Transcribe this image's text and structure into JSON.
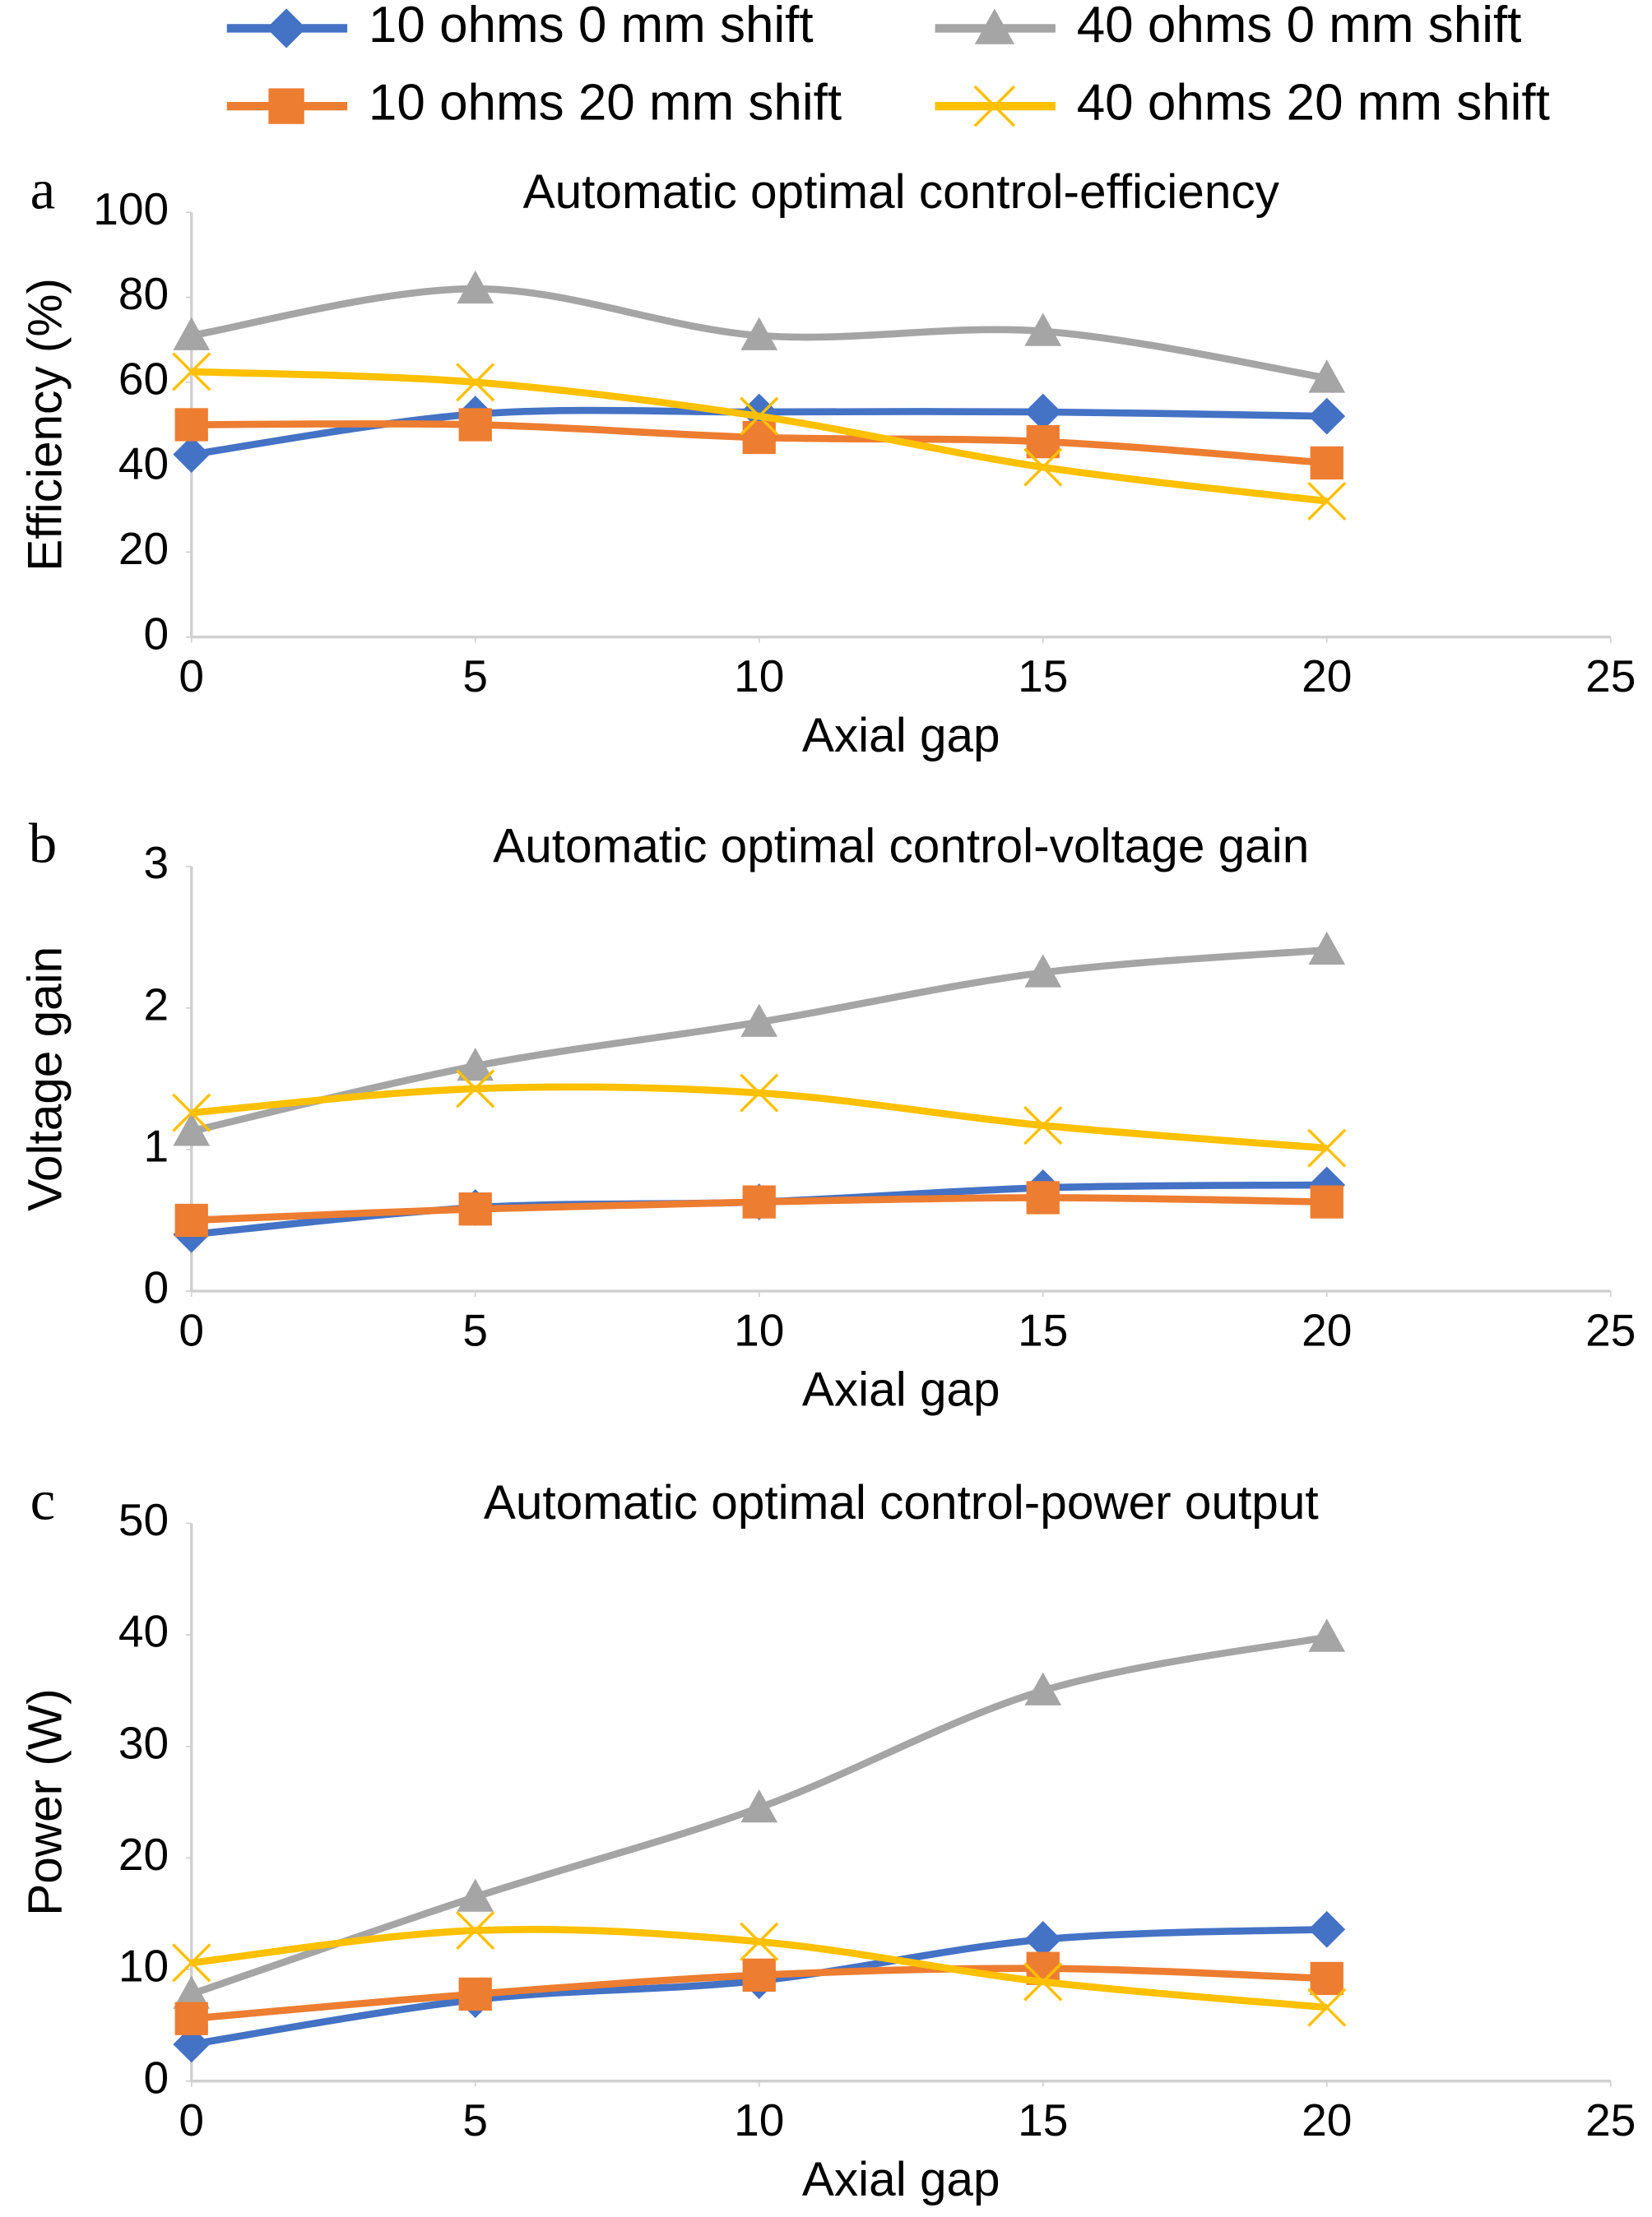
{
  "chart_data": [
    {
      "type": "line",
      "label": "a",
      "title": "Automatic optimal control-efficiency",
      "xlabel": "Axial gap",
      "ylabel": "Efficiency (%)",
      "x": [
        0,
        5,
        10,
        15,
        20
      ],
      "xlim": [
        0,
        25
      ],
      "xticks": [
        0,
        5,
        10,
        15,
        20,
        25
      ],
      "ylim": [
        0,
        100
      ],
      "yticks": [
        0,
        20,
        40,
        60,
        80,
        100
      ],
      "series": [
        {
          "name": "10 ohms 0 mm shift",
          "color": "#4472c4",
          "marker": "diamond",
          "values": [
            43,
            52.5,
            53,
            53,
            52
          ]
        },
        {
          "name": "40 ohms 0 mm shift",
          "color": "#a5a5a5",
          "marker": "triangle",
          "values": [
            71,
            82,
            71,
            72,
            61
          ]
        },
        {
          "name": "10 ohms 20 mm shift",
          "color": "#ed7d31",
          "marker": "square",
          "values": [
            50,
            50,
            47,
            46,
            41
          ]
        },
        {
          "name": "40 ohms 20 mm shift",
          "color": "#ffc000",
          "marker": "x",
          "values": [
            62.5,
            60,
            52,
            40,
            32
          ]
        }
      ]
    },
    {
      "type": "line",
      "label": "b",
      "title": "Automatic optimal control-voltage gain",
      "xlabel": "Axial gap",
      "ylabel": "Voltage gain",
      "x": [
        0,
        5,
        10,
        15,
        20
      ],
      "xlim": [
        0,
        25
      ],
      "xticks": [
        0,
        5,
        10,
        15,
        20,
        25
      ],
      "ylim": [
        0,
        3
      ],
      "yticks": [
        0,
        1,
        2,
        3
      ],
      "series": [
        {
          "values": [
            0.4,
            0.59,
            0.63,
            0.73,
            0.75
          ]
        },
        {
          "values": [
            1.13,
            1.59,
            1.9,
            2.25,
            2.41
          ]
        },
        {
          "values": [
            0.5,
            0.58,
            0.63,
            0.66,
            0.63
          ]
        },
        {
          "values": [
            1.26,
            1.43,
            1.4,
            1.17,
            1.01
          ]
        }
      ]
    },
    {
      "type": "line",
      "label": "c",
      "title": "Automatic optimal control-power output",
      "xlabel": "Axial gap",
      "ylabel": "Power (W)",
      "x": [
        0,
        5,
        10,
        15,
        20
      ],
      "xlim": [
        0,
        25
      ],
      "xticks": [
        0,
        5,
        10,
        15,
        20,
        25
      ],
      "ylim": [
        0,
        50
      ],
      "yticks": [
        0,
        10,
        20,
        30,
        40,
        50
      ],
      "series": [
        {
          "values": [
            3.3,
            7.3,
            9,
            12.7,
            13.6
          ]
        },
        {
          "values": [
            7.8,
            16.5,
            24.5,
            35,
            39.8
          ]
        },
        {
          "values": [
            5.6,
            7.8,
            9.5,
            10.1,
            9.2
          ]
        },
        {
          "values": [
            10.6,
            13.5,
            12.5,
            8.9,
            6.6
          ]
        }
      ]
    }
  ]
}
